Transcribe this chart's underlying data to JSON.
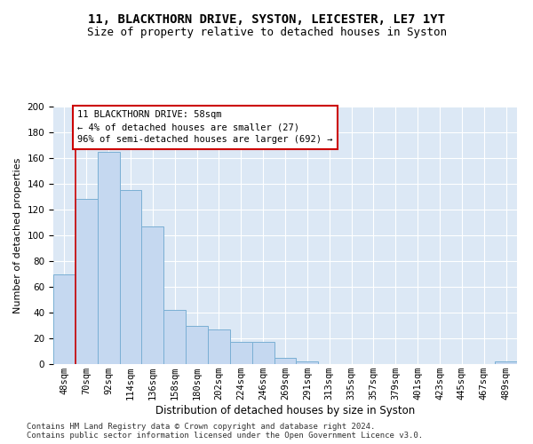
{
  "title1": "11, BLACKTHORN DRIVE, SYSTON, LEICESTER, LE7 1YT",
  "title2": "Size of property relative to detached houses in Syston",
  "xlabel": "Distribution of detached houses by size in Syston",
  "ylabel": "Number of detached properties",
  "footnote": "Contains HM Land Registry data © Crown copyright and database right 2024.\nContains public sector information licensed under the Open Government Licence v3.0.",
  "bar_labels": [
    "48sqm",
    "70sqm",
    "92sqm",
    "114sqm",
    "136sqm",
    "158sqm",
    "180sqm",
    "202sqm",
    "224sqm",
    "246sqm",
    "269sqm",
    "291sqm",
    "313sqm",
    "335sqm",
    "357sqm",
    "379sqm",
    "401sqm",
    "423sqm",
    "445sqm",
    "467sqm",
    "489sqm"
  ],
  "bar_values": [
    70,
    128,
    165,
    135,
    107,
    42,
    30,
    27,
    17,
    17,
    5,
    2,
    0,
    0,
    0,
    0,
    0,
    0,
    0,
    0,
    2
  ],
  "bar_color": "#c5d8f0",
  "bar_edge_color": "#7aafd4",
  "annotation_line1": "11 BLACKTHORN DRIVE: 58sqm",
  "annotation_line2": "← 4% of detached houses are smaller (27)",
  "annotation_line3": "96% of semi-detached houses are larger (692) →",
  "vline_x": 1.0,
  "annotation_box_color": "#ffffff",
  "annotation_box_edge_color": "#cc0000",
  "background_color": "#dce8f5",
  "ylim": [
    0,
    200
  ],
  "yticks": [
    0,
    20,
    40,
    60,
    80,
    100,
    120,
    140,
    160,
    180,
    200
  ],
  "grid_color": "#ffffff",
  "title1_fontsize": 10,
  "title2_fontsize": 9,
  "xlabel_fontsize": 8.5,
  "ylabel_fontsize": 8,
  "tick_fontsize": 7.5,
  "annotation_fontsize": 7.5,
  "footnote_fontsize": 6.5
}
